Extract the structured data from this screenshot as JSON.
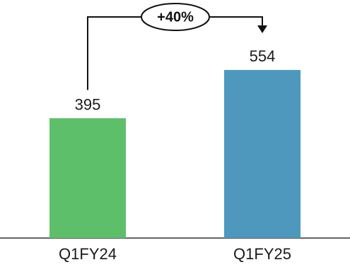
{
  "chart_data": {
    "type": "bar",
    "categories": [
      "Q1FY24",
      "Q1FY25"
    ],
    "values": [
      395,
      554
    ],
    "value_labels": [
      "395",
      "554"
    ],
    "colors": [
      "#5dbf69",
      "#4e98bd"
    ],
    "ylim": [
      0,
      600
    ],
    "grid": false,
    "legend": "none",
    "annotation": {
      "text": "+40%",
      "from": "Q1FY24",
      "to": "Q1FY25"
    },
    "title": "",
    "xlabel": "",
    "ylabel": ""
  }
}
